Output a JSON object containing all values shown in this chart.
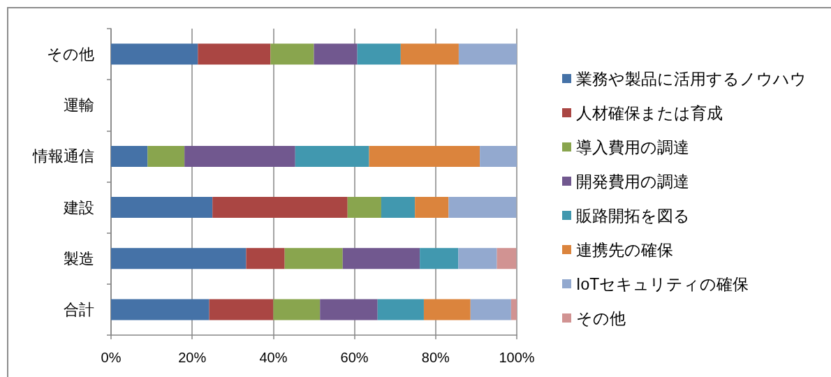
{
  "chart_data": {
    "type": "bar",
    "orientation": "horizontal",
    "stacked": true,
    "categories": [
      "その他",
      "運輸",
      "情報通信",
      "建設",
      "製造",
      "合計"
    ],
    "series": [
      {
        "name": "業務や製品に活用するノウハウ",
        "color": "#4572a7",
        "values": [
          21.4,
          0,
          9.0,
          25.0,
          33.3,
          24.2
        ]
      },
      {
        "name": "人材確保または育成",
        "color": "#aa4643",
        "values": [
          17.9,
          0,
          0,
          33.3,
          9.5,
          15.8
        ]
      },
      {
        "name": "導入費用の調達",
        "color": "#89a54e",
        "values": [
          10.7,
          0,
          9.1,
          8.3,
          14.3,
          11.5
        ]
      },
      {
        "name": "開発費用の調達",
        "color": "#71588f",
        "values": [
          10.7,
          0,
          27.3,
          0,
          19.0,
          14.2
        ]
      },
      {
        "name": "販路開拓を図る",
        "color": "#4198af",
        "values": [
          10.7,
          0,
          18.2,
          8.3,
          9.5,
          11.4
        ]
      },
      {
        "name": "連携先の確保",
        "color": "#db843d",
        "values": [
          14.3,
          0,
          27.3,
          8.3,
          0,
          11.5
        ]
      },
      {
        "name": "IoTセキュリティの確保",
        "color": "#93a9cf",
        "values": [
          14.3,
          0,
          9.1,
          16.7,
          9.5,
          10.0
        ]
      },
      {
        "name": "その他",
        "color": "#d19392",
        "values": [
          0,
          0,
          0,
          0,
          4.8,
          1.4
        ]
      }
    ],
    "xlim": [
      0,
      100
    ],
    "xticks": [
      {
        "value": 0,
        "label": "0%"
      },
      {
        "value": 20,
        "label": "20%"
      },
      {
        "value": 40,
        "label": "40%"
      },
      {
        "value": 60,
        "label": "60%"
      },
      {
        "value": 80,
        "label": "80%"
      },
      {
        "value": 100,
        "label": "100%"
      }
    ],
    "grid": "x",
    "legend": "right"
  }
}
